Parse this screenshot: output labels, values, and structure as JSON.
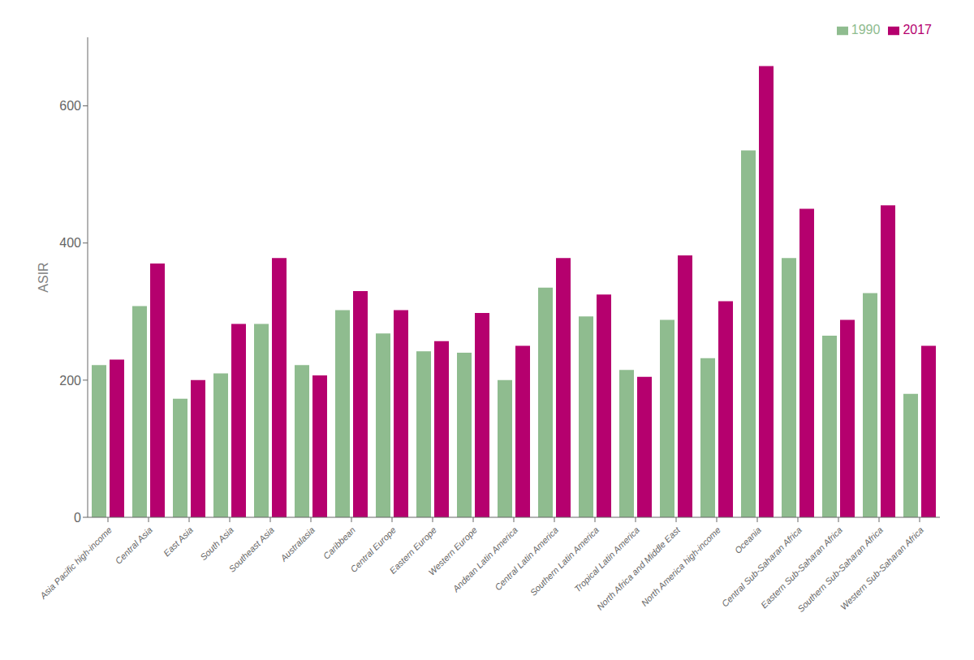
{
  "chart_data": {
    "type": "bar",
    "ylabel": "ASIR",
    "categories": [
      "Asia Pacific high-income",
      "Central Asia",
      "East Asia",
      "South Asia",
      "Southeast Asia",
      "Australasia",
      "Caribbean",
      "Central Europe",
      "Eastern Europe",
      "Western Europe",
      "Andean Latin America",
      "Central Latin America",
      "Southern Latin America",
      "Tropical Latin America",
      "North Africa and Middle East",
      "North America high-income",
      "Oceania",
      "Central Sub-Saharan Africa",
      "Eastern Sub-Saharan Africa",
      "Southern Sub-Saharan Africa",
      "Western Sub-Saharan Africa"
    ],
    "series": [
      {
        "name": "1990",
        "color": "#8fbc8f",
        "values": [
          222,
          308,
          173,
          210,
          282,
          222,
          302,
          268,
          242,
          240,
          200,
          335,
          293,
          215,
          288,
          232,
          535,
          378,
          265,
          327,
          180
        ]
      },
      {
        "name": "2017",
        "color": "#b5006e",
        "values": [
          230,
          370,
          200,
          282,
          378,
          207,
          330,
          302,
          257,
          298,
          250,
          378,
          325,
          205,
          382,
          315,
          658,
          450,
          288,
          455,
          250
        ]
      }
    ],
    "ylim": [
      0,
      700
    ],
    "yticks": [
      0,
      200,
      400,
      600
    ],
    "legend": "upper right",
    "grid": false
  }
}
